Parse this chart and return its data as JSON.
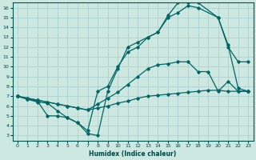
{
  "xlabel": "Humidex (Indice chaleur)",
  "bg_color": "#cce8e0",
  "grid_color": "#aacccc",
  "line_color": "#006666",
  "xlim": [
    -0.5,
    23.5
  ],
  "ylim": [
    2.5,
    16.5
  ],
  "xticks": [
    0,
    1,
    2,
    3,
    4,
    5,
    6,
    7,
    8,
    9,
    10,
    11,
    12,
    13,
    14,
    15,
    16,
    17,
    18,
    19,
    20,
    21,
    22,
    23
  ],
  "yticks": [
    3,
    4,
    5,
    6,
    7,
    8,
    9,
    10,
    11,
    12,
    13,
    14,
    15,
    16
  ],
  "line1_x": [
    0,
    1,
    2,
    3,
    4,
    5,
    6,
    7,
    8,
    9,
    10,
    11,
    12,
    13,
    14,
    15,
    16,
    17,
    18,
    19,
    20,
    21,
    22,
    23
  ],
  "line1_y": [
    7.0,
    6.8,
    6.6,
    6.4,
    6.2,
    6.0,
    5.8,
    5.6,
    5.8,
    6.0,
    6.3,
    6.5,
    6.8,
    7.0,
    7.1,
    7.2,
    7.3,
    7.4,
    7.5,
    7.6,
    7.6,
    7.5,
    7.5,
    7.5
  ],
  "line2_x": [
    0,
    1,
    2,
    3,
    4,
    5,
    6,
    7,
    8,
    9,
    10,
    11,
    12,
    13,
    14,
    15,
    16,
    17,
    18,
    19,
    20,
    21,
    22,
    23
  ],
  "line2_y": [
    7.0,
    6.8,
    6.6,
    6.4,
    6.2,
    6.0,
    5.8,
    5.6,
    6.2,
    6.8,
    7.4,
    8.2,
    9.0,
    9.8,
    10.2,
    10.3,
    10.5,
    10.5,
    9.5,
    9.5,
    7.5,
    8.5,
    7.5,
    7.5
  ],
  "line3_x": [
    0,
    1,
    2,
    3,
    4,
    5,
    6,
    7,
    8,
    9,
    10,
    11,
    12,
    13,
    14,
    15,
    16,
    17,
    18,
    20,
    21,
    22,
    23
  ],
  "line3_y": [
    7.0,
    6.7,
    6.5,
    5.0,
    5.0,
    4.8,
    4.3,
    3.5,
    7.5,
    8.0,
    10.0,
    11.5,
    12.0,
    13.0,
    13.5,
    15.0,
    15.5,
    16.2,
    16.0,
    15.0,
    12.0,
    10.5,
    10.5
  ],
  "line4_x": [
    0,
    1,
    2,
    3,
    4,
    5,
    6,
    7,
    8,
    9,
    10,
    11,
    12,
    13,
    14,
    15,
    16,
    17,
    18,
    20,
    21,
    22,
    23
  ],
  "line4_y": [
    7.0,
    6.7,
    6.4,
    6.3,
    5.5,
    4.8,
    4.3,
    3.2,
    3.0,
    7.5,
    9.8,
    12.0,
    12.5,
    13.0,
    13.5,
    15.2,
    16.5,
    16.5,
    16.5,
    15.0,
    12.2,
    7.8,
    7.5
  ]
}
